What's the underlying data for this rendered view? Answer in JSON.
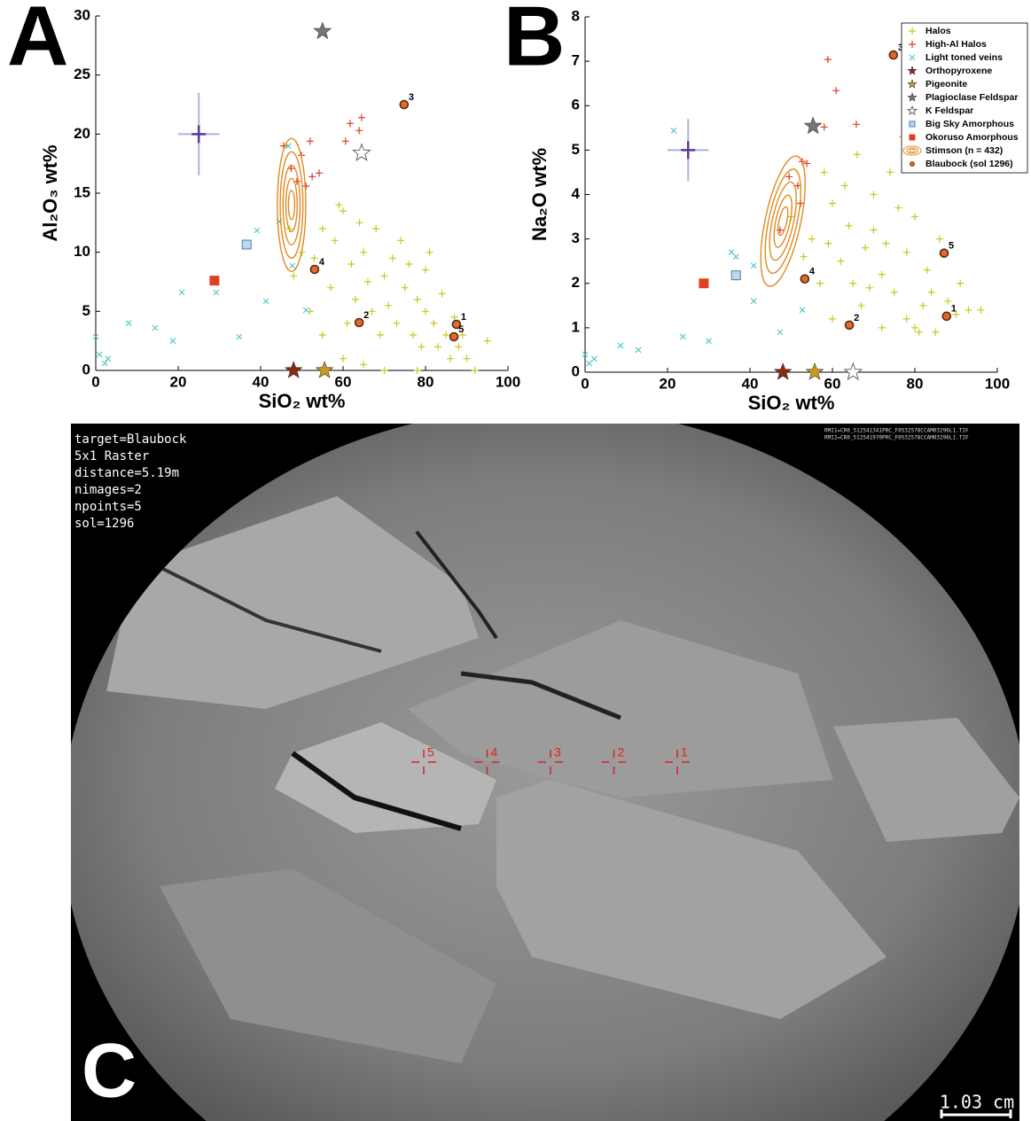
{
  "panel_labels": [
    "A",
    "B"
  ],
  "chart_data": [
    {
      "type": "scatter",
      "xlabel": "SiO₂ wt%",
      "ylabel": "Al₂O₃ wt%",
      "xlim": [
        0,
        100
      ],
      "ylim": [
        0,
        30
      ],
      "xticks": [
        0,
        20,
        40,
        60,
        80,
        100
      ],
      "yticks": [
        0,
        5,
        10,
        15,
        20,
        25,
        30
      ],
      "legend": false,
      "error_bar": {
        "x": 25,
        "y": 20,
        "xerr": 5,
        "yerr": 3.5,
        "color": "#5a3aa0"
      },
      "series": [
        {
          "name": "Halos",
          "color": "#c8c81e",
          "marker": "plus",
          "x": [
            50,
            55,
            60,
            58,
            62,
            65,
            68,
            70,
            72,
            75,
            78,
            80,
            82,
            85,
            88,
            90,
            92,
            78,
            70,
            65,
            60,
            55,
            52,
            57,
            63,
            67,
            73,
            77,
            83,
            86,
            74,
            80,
            84,
            69,
            61,
            66,
            71,
            76,
            79,
            87,
            48,
            53,
            59,
            64,
            81,
            89,
            95,
            47
          ],
          "values": [
            10,
            12,
            13.5,
            11,
            9,
            10,
            12,
            8,
            9.5,
            7,
            6,
            5,
            4,
            3,
            2,
            1,
            0,
            0,
            0,
            0.5,
            1,
            3,
            5,
            7,
            6,
            5,
            4,
            3,
            2,
            1,
            11,
            8.5,
            6.5,
            3,
            4,
            7.5,
            5.5,
            9,
            2,
            4.5,
            8,
            9.5,
            14,
            12.5,
            10,
            3,
            2.5,
            12
          ]
        },
        {
          "name": "High-Al Halos",
          "color": "#d83a2a",
          "marker": "plus",
          "x": [
            45.6,
            49.9,
            52,
            47.4,
            52.5,
            61.7,
            64.5,
            60.6,
            54.2,
            48.8,
            51,
            63.9
          ],
          "values": [
            19,
            18.2,
            19.4,
            17.1,
            16.4,
            20.9,
            21.4,
            19.4,
            16.7,
            16,
            15.6,
            20.3
          ]
        },
        {
          "name": "Light toned veins",
          "color": "#55c8c8",
          "marker": "x",
          "x": [
            0,
            0.9,
            2.2,
            3,
            8,
            14.4,
            20.9,
            29.2,
            34.8,
            41.3,
            47.7,
            46.7,
            44.5,
            51,
            39.1,
            18.7
          ],
          "values": [
            2.85,
            1.35,
            0.6,
            1,
            4,
            3.6,
            6.6,
            6.6,
            2.85,
            5.85,
            8.85,
            19,
            12.6,
            5.1,
            11.85,
            2.5
          ]
        },
        {
          "name": "Orthopyroxene",
          "color": "#8b2a10",
          "marker": "star",
          "x": [
            48
          ],
          "values": [
            0
          ]
        },
        {
          "name": "Pigeonite",
          "color": "#c89a1a",
          "marker": "star",
          "x": [
            55.5
          ],
          "values": [
            0
          ]
        },
        {
          "name": "Plagioclase Feldspar",
          "color": "#777777",
          "marker": "star",
          "x": [
            55
          ],
          "values": [
            28.7
          ]
        },
        {
          "name": "K Feldspar",
          "color": "#ffffff",
          "marker": "star-open",
          "x": [
            64.5
          ],
          "values": [
            18.4
          ]
        },
        {
          "name": "Big Sky Amorphous",
          "color": "#bcd8ec",
          "marker": "square",
          "x": [
            36.6
          ],
          "values": [
            10.65
          ]
        },
        {
          "name": "Okoruso Amorphous",
          "color": "#e04020",
          "marker": "square",
          "x": [
            28.8
          ],
          "values": [
            7.6
          ]
        },
        {
          "name": "Stimson (n = 432)",
          "color": "#e08a20",
          "marker": "contour",
          "x": [
            47.5
          ],
          "values": [
            14
          ]
        },
        {
          "name": "Blaubock (sol 1296)",
          "color": "#e06a2a",
          "marker": "circle",
          "x": [
            87.5,
            63.9,
            74.8,
            53.1,
            86.9
          ],
          "values": [
            3.9,
            4.05,
            22.5,
            8.55,
            2.85
          ],
          "point_labels": [
            "1",
            "2",
            "3",
            "4",
            "5"
          ]
        }
      ]
    },
    {
      "type": "scatter",
      "xlabel": "SiO₂ wt%",
      "ylabel": "Na₂O wt%",
      "xlim": [
        0,
        100
      ],
      "ylim": [
        0,
        8
      ],
      "xticks": [
        0,
        20,
        40,
        60,
        80,
        100
      ],
      "yticks": [
        0,
        1,
        2,
        3,
        4,
        5,
        6,
        7,
        8
      ],
      "legend": true,
      "error_bar": {
        "x": 25,
        "y": 5,
        "xerr": 5,
        "yerr": 0.7,
        "color": "#5a3aa0"
      },
      "series": [
        {
          "name": "Halos",
          "color": "#c8c81e",
          "marker": "plus",
          "x": [
            50,
            55,
            58,
            60,
            62,
            65,
            68,
            70,
            72,
            75,
            78,
            80,
            82,
            85,
            88,
            90,
            93,
            96,
            70,
            74,
            76,
            63,
            67,
            72,
            60,
            57,
            53,
            64,
            78,
            83,
            86,
            80,
            69,
            73,
            77,
            66,
            59,
            81,
            84,
            91
          ],
          "values": [
            3.5,
            3,
            4.5,
            3.8,
            2.5,
            2,
            2.8,
            3.2,
            2.2,
            1.8,
            1.2,
            1,
            1.5,
            0.9,
            1.6,
            1.3,
            1.4,
            1.4,
            4,
            4.5,
            3.7,
            4.2,
            1.5,
            1,
            1.2,
            2,
            2.6,
            3.3,
            2.7,
            2.3,
            3,
            3.5,
            1.9,
            2.9,
            5.3,
            4.9,
            2.9,
            0.9,
            1.8,
            2
          ]
        },
        {
          "name": "High-Al Halos",
          "color": "#d83a2a",
          "marker": "plus",
          "x": [
            58.9,
            60.9,
            65.8,
            58,
            52.7,
            53.8,
            52.3,
            49.5,
            47.3,
            51.6
          ],
          "values": [
            7.04,
            6.34,
            5.58,
            5.52,
            4.74,
            4.7,
            3.8,
            4.4,
            3.2,
            4.2
          ]
        },
        {
          "name": "Light toned veins",
          "color": "#55c8c8",
          "marker": "x",
          "x": [
            0,
            1,
            2.2,
            8.6,
            12.9,
            23.7,
            30,
            36.6,
            40.9,
            47.3,
            21.5,
            52.7,
            40.9,
            35.5
          ],
          "values": [
            0.4,
            0.2,
            0.3,
            0.6,
            0.5,
            0.8,
            0.7,
            2.6,
            1.6,
            0.9,
            5.44,
            1.4,
            2.4,
            2.7
          ]
        },
        {
          "name": "Orthopyroxene",
          "color": "#8b2a10",
          "marker": "star",
          "x": [
            48
          ],
          "values": [
            0
          ]
        },
        {
          "name": "Pigeonite",
          "color": "#c89a1a",
          "marker": "star",
          "x": [
            55.7
          ],
          "values": [
            0
          ]
        },
        {
          "name": "Plagioclase Feldspar",
          "color": "#777777",
          "marker": "star",
          "x": [
            55.3
          ],
          "values": [
            5.54
          ]
        },
        {
          "name": "K Feldspar",
          "color": "#ffffff",
          "marker": "star-open",
          "x": [
            65
          ],
          "values": [
            0
          ]
        },
        {
          "name": "Big Sky Amorphous",
          "color": "#bcd8ec",
          "marker": "square",
          "x": [
            36.6
          ],
          "values": [
            2.18
          ]
        },
        {
          "name": "Okoruso Amorphous",
          "color": "#e04020",
          "marker": "square",
          "x": [
            28.8
          ],
          "values": [
            2
          ]
        },
        {
          "name": "Stimson (n = 432)",
          "color": "#e08a20",
          "marker": "contour",
          "x": [
            48
          ],
          "values": [
            3.4
          ]
        },
        {
          "name": "Blaubock (sol 1296)",
          "color": "#e06a2a",
          "marker": "circle",
          "x": [
            87.7,
            64.1,
            74.8,
            53.3,
            87.1
          ],
          "values": [
            1.26,
            1.06,
            7.14,
            2.1,
            2.68
          ],
          "point_labels": [
            "1",
            "2",
            "3",
            "4",
            "5"
          ]
        }
      ]
    }
  ],
  "image_panel": {
    "panel_label": "C",
    "info_lines": [
      "target=Blaubock",
      "5x1 Raster",
      "distance=5.19m",
      "nimages=2",
      "npoints=5",
      "sol=1296"
    ],
    "files": [
      "RMI1=CR0_512541341PRC_F0532578CCAM03296L1.TIF",
      "RMI2=CR0_512541970PRC_F0532578CCAM03296L1.TIF"
    ],
    "raster_labels": [
      "5",
      "4",
      "3",
      "2",
      "1"
    ],
    "scale_bar": "1.03 cm"
  }
}
